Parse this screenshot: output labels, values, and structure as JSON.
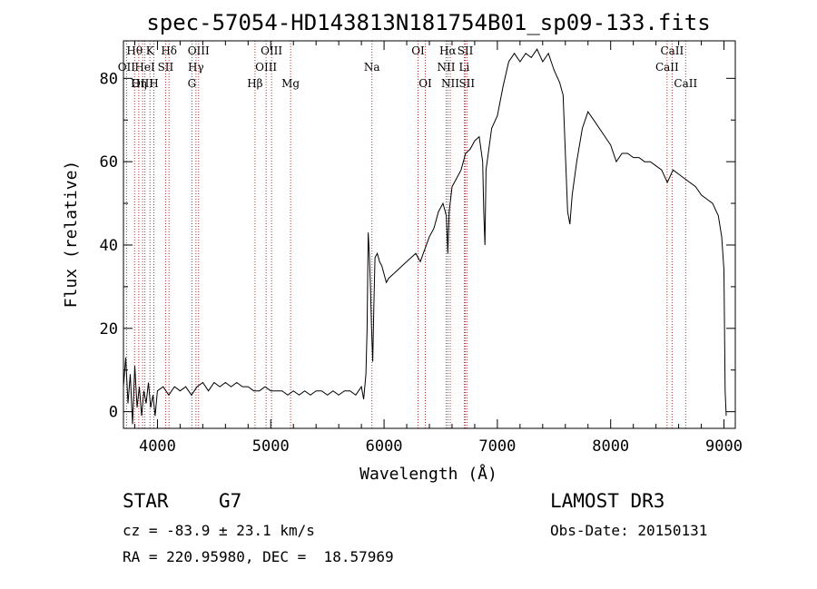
{
  "chart_data": {
    "type": "line",
    "title": "spec-57054-HD143813N181754B01_sp09-133.fits",
    "xlabel": "Wavelength (Å)",
    "ylabel": "Flux (relative)",
    "xlim": [
      3700,
      9100
    ],
    "ylim": [
      -4,
      89
    ],
    "x_ticks": [
      4000,
      5000,
      6000,
      7000,
      8000,
      9000
    ],
    "y_ticks": [
      0,
      20,
      40,
      60,
      80
    ],
    "series": [
      {
        "points": [
          [
            3700,
            6
          ],
          [
            3720,
            13
          ],
          [
            3740,
            2
          ],
          [
            3760,
            9
          ],
          [
            3780,
            -3
          ],
          [
            3800,
            11
          ],
          [
            3820,
            1
          ],
          [
            3840,
            6
          ],
          [
            3860,
            -1
          ],
          [
            3880,
            5
          ],
          [
            3900,
            2
          ],
          [
            3920,
            7
          ],
          [
            3940,
            1
          ],
          [
            3960,
            4
          ],
          [
            3980,
            -1
          ],
          [
            4000,
            5
          ],
          [
            4050,
            6
          ],
          [
            4100,
            4
          ],
          [
            4150,
            6
          ],
          [
            4200,
            5
          ],
          [
            4250,
            6
          ],
          [
            4300,
            4
          ],
          [
            4350,
            6
          ],
          [
            4400,
            7
          ],
          [
            4450,
            5
          ],
          [
            4500,
            7
          ],
          [
            4550,
            6
          ],
          [
            4600,
            7
          ],
          [
            4650,
            6
          ],
          [
            4700,
            7
          ],
          [
            4750,
            6
          ],
          [
            4800,
            6
          ],
          [
            4850,
            5
          ],
          [
            4900,
            5
          ],
          [
            4950,
            6
          ],
          [
            5000,
            5
          ],
          [
            5050,
            5
          ],
          [
            5100,
            5
          ],
          [
            5150,
            4
          ],
          [
            5200,
            5
          ],
          [
            5250,
            4
          ],
          [
            5300,
            5
          ],
          [
            5350,
            4
          ],
          [
            5400,
            5
          ],
          [
            5450,
            5
          ],
          [
            5500,
            4
          ],
          [
            5550,
            5
          ],
          [
            5600,
            4
          ],
          [
            5650,
            5
          ],
          [
            5700,
            5
          ],
          [
            5750,
            4
          ],
          [
            5800,
            6
          ],
          [
            5820,
            3
          ],
          [
            5840,
            9
          ],
          [
            5850,
            20
          ],
          [
            5860,
            43
          ],
          [
            5870,
            38
          ],
          [
            5880,
            30
          ],
          [
            5890,
            20
          ],
          [
            5900,
            12
          ],
          [
            5910,
            25
          ],
          [
            5920,
            37
          ],
          [
            5940,
            38
          ],
          [
            5960,
            36
          ],
          [
            5980,
            35
          ],
          [
            6000,
            33
          ],
          [
            6020,
            31
          ],
          [
            6040,
            32
          ],
          [
            6080,
            33
          ],
          [
            6120,
            34
          ],
          [
            6160,
            35
          ],
          [
            6200,
            36
          ],
          [
            6240,
            37
          ],
          [
            6280,
            38
          ],
          [
            6320,
            36
          ],
          [
            6360,
            39
          ],
          [
            6400,
            42
          ],
          [
            6440,
            44
          ],
          [
            6480,
            48
          ],
          [
            6520,
            50
          ],
          [
            6550,
            47
          ],
          [
            6563,
            38
          ],
          [
            6575,
            48
          ],
          [
            6600,
            54
          ],
          [
            6640,
            56
          ],
          [
            6680,
            58
          ],
          [
            6720,
            62
          ],
          [
            6760,
            63
          ],
          [
            6800,
            65
          ],
          [
            6840,
            66
          ],
          [
            6870,
            60
          ],
          [
            6880,
            48
          ],
          [
            6890,
            40
          ],
          [
            6900,
            58
          ],
          [
            6950,
            68
          ],
          [
            7000,
            71
          ],
          [
            7050,
            78
          ],
          [
            7100,
            84
          ],
          [
            7150,
            86
          ],
          [
            7200,
            84
          ],
          [
            7250,
            86
          ],
          [
            7300,
            85
          ],
          [
            7350,
            87
          ],
          [
            7400,
            84
          ],
          [
            7450,
            86
          ],
          [
            7500,
            82
          ],
          [
            7550,
            79
          ],
          [
            7580,
            76
          ],
          [
            7600,
            62
          ],
          [
            7620,
            48
          ],
          [
            7640,
            45
          ],
          [
            7660,
            52
          ],
          [
            7700,
            60
          ],
          [
            7750,
            68
          ],
          [
            7800,
            72
          ],
          [
            7850,
            70
          ],
          [
            7900,
            68
          ],
          [
            7950,
            66
          ],
          [
            8000,
            64
          ],
          [
            8050,
            60
          ],
          [
            8100,
            62
          ],
          [
            8150,
            62
          ],
          [
            8200,
            61
          ],
          [
            8250,
            61
          ],
          [
            8300,
            60
          ],
          [
            8350,
            60
          ],
          [
            8400,
            59
          ],
          [
            8450,
            58
          ],
          [
            8500,
            55
          ],
          [
            8550,
            58
          ],
          [
            8600,
            57
          ],
          [
            8650,
            56
          ],
          [
            8700,
            55
          ],
          [
            8750,
            54
          ],
          [
            8800,
            52
          ],
          [
            8850,
            51
          ],
          [
            8900,
            50
          ],
          [
            8950,
            47
          ],
          [
            8980,
            42
          ],
          [
            9000,
            34
          ],
          [
            9010,
            5
          ],
          [
            9020,
            -1
          ]
        ]
      }
    ],
    "lines": [
      {
        "name": "Hθ",
        "w": 3798,
        "row": 0
      },
      {
        "name": "OII",
        "w": 3727,
        "row": 1
      },
      {
        "name": "OIII",
        "w": 3869,
        "row": 2
      },
      {
        "name": "Hη",
        "w": 3835,
        "row": 2
      },
      {
        "name": "K",
        "w": 3934,
        "row": 0
      },
      {
        "name": "HeI",
        "w": 3889,
        "row": 1
      },
      {
        "name": "H",
        "w": 3968,
        "row": 2
      },
      {
        "name": "SII",
        "w": 4072,
        "row": 1
      },
      {
        "name": "Hδ",
        "w": 4102,
        "row": 0
      },
      {
        "name": "OIII",
        "w": 4363,
        "row": 0
      },
      {
        "name": "Hγ",
        "w": 4340,
        "row": 1
      },
      {
        "name": "G",
        "w": 4304,
        "row": 2
      },
      {
        "name": "Hβ",
        "w": 4861,
        "row": 2
      },
      {
        "name": "OIII",
        "w": 4959,
        "row": 1
      },
      {
        "name": "OIII",
        "w": 5007,
        "row": 0
      },
      {
        "name": "Mg",
        "w": 5175,
        "row": 2
      },
      {
        "name": "Na",
        "w": 5893,
        "row": 1
      },
      {
        "name": "OI",
        "w": 6300,
        "row": 0
      },
      {
        "name": "OI",
        "w": 6364,
        "row": 2
      },
      {
        "name": "Hα",
        "w": 6563,
        "row": 0
      },
      {
        "name": "NII",
        "w": 6548,
        "row": 1
      },
      {
        "name": "NII",
        "w": 6584,
        "row": 2
      },
      {
        "name": "SII",
        "w": 6717,
        "row": 0
      },
      {
        "name": "Li",
        "w": 6708,
        "row": 1
      },
      {
        "name": "SII",
        "w": 6731,
        "row": 2
      },
      {
        "name": "CaII",
        "w": 8542,
        "row": 0
      },
      {
        "name": "CaII",
        "w": 8498,
        "row": 1
      },
      {
        "name": "CaII",
        "w": 8662,
        "row": 2
      }
    ]
  },
  "info": {
    "class": "STAR",
    "subclass": "G7",
    "survey": "LAMOST DR3",
    "cz": "cz = -83.9 ± 23.1 km/s",
    "obs_date": "Obs-Date: 20150131",
    "radec": "RA = 220.95980, DEC =  18.57969"
  },
  "colors": {
    "spectrum": "#000000",
    "line_markers": "#b03030",
    "axes": "#000000"
  }
}
